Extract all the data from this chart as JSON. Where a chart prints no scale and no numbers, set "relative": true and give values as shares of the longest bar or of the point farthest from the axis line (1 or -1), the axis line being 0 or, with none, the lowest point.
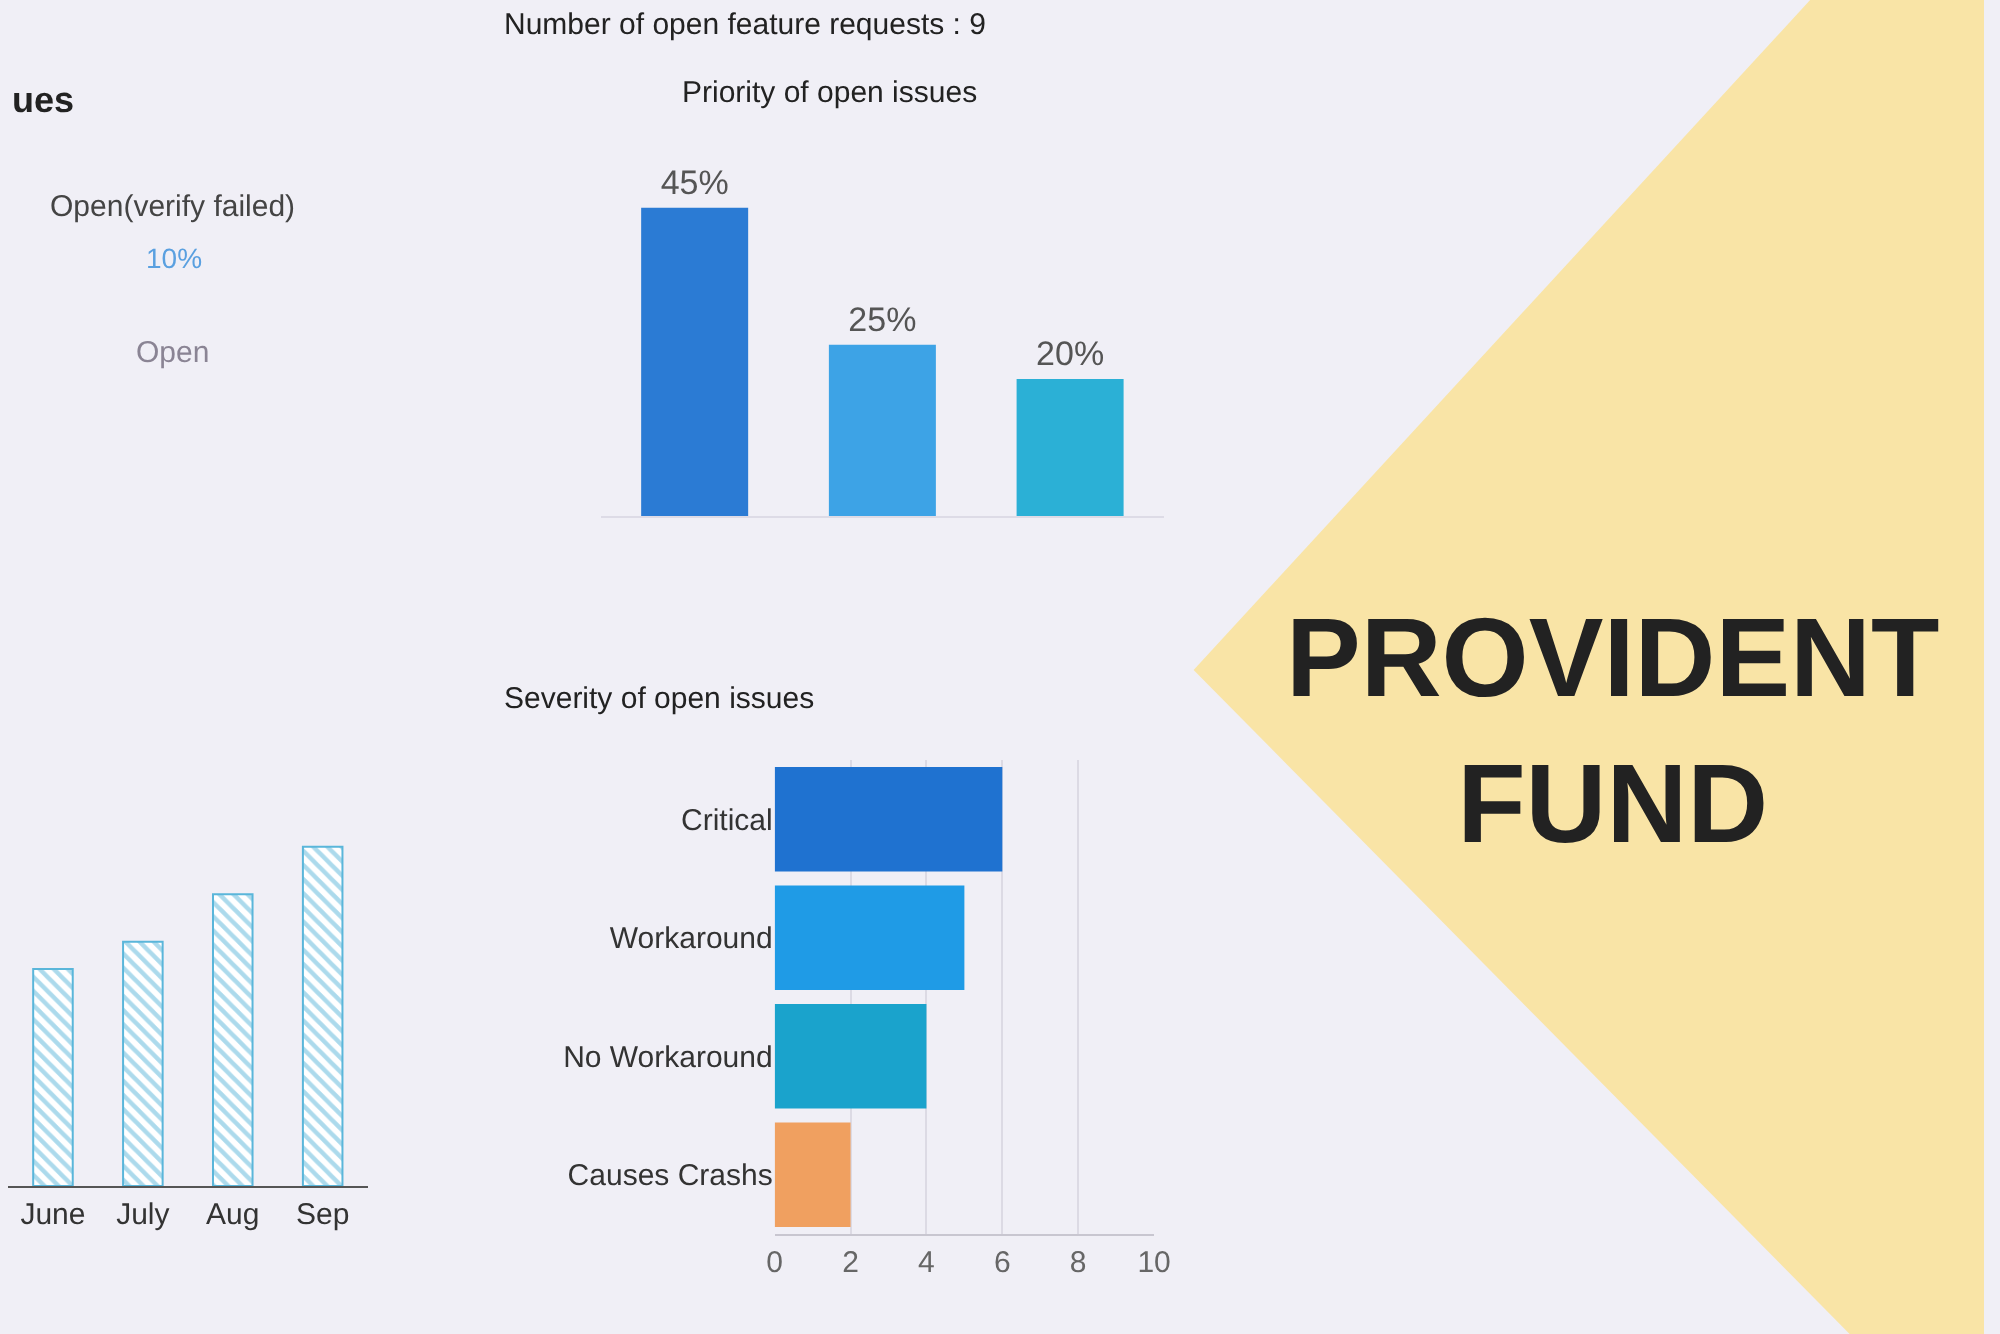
{
  "chart_data": [
    {
      "type": "other",
      "title": "ues",
      "annotations": [
        "Open(verify failed)",
        "10%",
        "Open"
      ]
    },
    {
      "type": "bar",
      "title": "Priority of open issues",
      "annotations": [
        "Number of open feature requests : 9"
      ],
      "categories": [
        null,
        null,
        null
      ],
      "values": [
        45,
        25,
        20
      ],
      "colors": [
        "#2b7bd4",
        "#3da3e6",
        "#2bb0d6"
      ],
      "value_labels": [
        "45%",
        "25%",
        "20%"
      ]
    },
    {
      "type": "bar",
      "categories": [
        "June",
        "July",
        "Aug",
        "Sep"
      ],
      "values": [
        0.64,
        0.72,
        0.86,
        1
      ],
      "color": "#5ab6da",
      "relative": true
    },
    {
      "type": "bar",
      "orientation": "horizontal",
      "title": "Severity of open issues",
      "categories": [
        "Critical",
        "Workaround",
        "No Workaround",
        "Causes Crashs"
      ],
      "values": [
        6,
        5,
        4,
        2
      ],
      "colors": [
        "#1f72d0",
        "#1f9be6",
        "#1aa3cc",
        "#f0a060"
      ],
      "xlim": [
        0,
        10
      ],
      "xticks": [
        0,
        2,
        4,
        6,
        8,
        10
      ],
      "grid": "x"
    },
    {
      "type": "other",
      "title": "PROVIDENT\nFUND",
      "color": "#f9e4a6"
    }
  ]
}
